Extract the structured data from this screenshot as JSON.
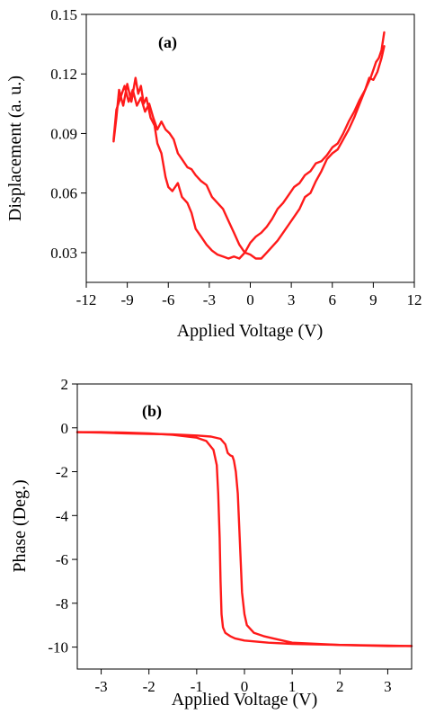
{
  "figure": {
    "colors": {
      "curve": "#ff1a1a",
      "axes": "#000000",
      "background": "#ffffff"
    }
  },
  "chart_data": [
    {
      "type": "line",
      "panel_label": "(a)",
      "xlabel": "Applied Voltage (V)",
      "ylabel": "Displacement (a. u.)",
      "xlim": [
        -12,
        12
      ],
      "ylim": [
        0.015,
        0.15
      ],
      "xticks": [
        -12,
        -9,
        -6,
        -3,
        0,
        3,
        6,
        9,
        12
      ],
      "yticks": [
        0.03,
        0.06,
        0.09,
        0.12,
        0.15
      ],
      "tick_labels_x": [
        "-12",
        "-9",
        "-6",
        "-3",
        "0",
        "3",
        "6",
        "9",
        "12"
      ],
      "tick_labels_y": [
        "0.03",
        "0.06",
        "0.09",
        "0.12",
        "0.15"
      ],
      "grid": false,
      "series": [
        {
          "x": [
            -10.0,
            -9.8,
            -9.6,
            -9.3,
            -9.0,
            -8.7,
            -8.4,
            -8.2,
            -8.0,
            -7.8,
            -7.6,
            -7.3,
            -7.0,
            -6.8,
            -6.5,
            -6.2,
            -6.0,
            -5.7,
            -5.3,
            -5.0,
            -4.6,
            -4.3,
            -4.0,
            -3.6,
            -3.2,
            -2.8,
            -2.4,
            -2.0,
            -1.6,
            -1.2,
            -0.8,
            -0.4,
            0.0,
            0.4,
            0.8,
            1.2,
            1.6,
            2.0,
            2.4,
            2.8,
            3.2,
            3.6,
            4.0,
            4.4,
            4.8,
            5.2,
            5.6,
            6.0,
            6.4,
            6.8,
            7.2,
            7.6,
            8.0,
            8.4,
            8.8,
            9.0,
            9.2,
            9.4,
            9.6,
            9.8
          ],
          "y": [
            0.086,
            0.098,
            0.112,
            0.104,
            0.115,
            0.106,
            0.118,
            0.11,
            0.114,
            0.105,
            0.108,
            0.098,
            0.094,
            0.085,
            0.08,
            0.068,
            0.063,
            0.061,
            0.065,
            0.058,
            0.055,
            0.05,
            0.042,
            0.038,
            0.034,
            0.031,
            0.029,
            0.028,
            0.027,
            0.028,
            0.027,
            0.03,
            0.035,
            0.038,
            0.04,
            0.043,
            0.047,
            0.052,
            0.055,
            0.059,
            0.063,
            0.065,
            0.069,
            0.071,
            0.075,
            0.076,
            0.079,
            0.083,
            0.085,
            0.09,
            0.096,
            0.101,
            0.107,
            0.112,
            0.118,
            0.122,
            0.126,
            0.128,
            0.132,
            0.141
          ]
        },
        {
          "x": [
            9.8,
            9.6,
            9.3,
            9.0,
            8.7,
            8.4,
            8.0,
            7.6,
            7.2,
            6.8,
            6.4,
            6.0,
            5.6,
            5.2,
            4.8,
            4.4,
            4.0,
            3.6,
            3.2,
            2.8,
            2.4,
            2.0,
            1.6,
            1.2,
            0.8,
            0.4,
            0.0,
            -0.4,
            -0.8,
            -1.2,
            -1.6,
            -2.0,
            -2.4,
            -2.8,
            -3.2,
            -3.6,
            -4.0,
            -4.3,
            -4.6,
            -5.0,
            -5.3,
            -5.6,
            -5.9,
            -6.2,
            -6.5,
            -6.8,
            -7.1,
            -7.4,
            -7.7,
            -8.0,
            -8.3,
            -8.6,
            -8.9,
            -9.2,
            -9.5,
            -9.8,
            -10.0
          ],
          "y": [
            0.134,
            0.128,
            0.121,
            0.117,
            0.118,
            0.112,
            0.105,
            0.098,
            0.092,
            0.087,
            0.082,
            0.08,
            0.077,
            0.071,
            0.066,
            0.06,
            0.058,
            0.052,
            0.048,
            0.044,
            0.04,
            0.036,
            0.033,
            0.03,
            0.027,
            0.027,
            0.029,
            0.03,
            0.034,
            0.04,
            0.046,
            0.052,
            0.055,
            0.058,
            0.064,
            0.066,
            0.069,
            0.072,
            0.073,
            0.077,
            0.08,
            0.087,
            0.09,
            0.092,
            0.096,
            0.092,
            0.098,
            0.105,
            0.101,
            0.108,
            0.104,
            0.112,
            0.106,
            0.114,
            0.108,
            0.102,
            0.087
          ]
        }
      ]
    },
    {
      "type": "line",
      "panel_label": "(b)",
      "xlabel": "Applied Voltage (V)",
      "ylabel": "Phase (Deg.)",
      "xlim": [
        -3.5,
        3.5
      ],
      "ylim": [
        -11,
        2
      ],
      "xticks": [
        -3,
        -2,
        -1,
        0,
        1,
        2,
        3
      ],
      "yticks": [
        -10,
        -8,
        -6,
        -4,
        -2,
        0,
        2
      ],
      "tick_labels_x": [
        "-3",
        "-2",
        "-1",
        "0",
        "1",
        "2",
        "3"
      ],
      "tick_labels_y": [
        "-10",
        "-8",
        "-6",
        "-4",
        "-2",
        "0",
        "2"
      ],
      "grid": false,
      "series": [
        {
          "x": [
            -3.5,
            -3.0,
            -2.5,
            -2.0,
            -1.5,
            -1.0,
            -0.8,
            -0.65,
            -0.58,
            -0.55,
            -0.52,
            -0.5,
            -0.48,
            -0.45,
            -0.4,
            -0.3,
            -0.2,
            0.0,
            0.5,
            1.0,
            2.0,
            3.0,
            3.5
          ],
          "y": [
            -0.2,
            -0.2,
            -0.22,
            -0.25,
            -0.32,
            -0.45,
            -0.6,
            -1.0,
            -1.7,
            -3.0,
            -5.0,
            -7.0,
            -8.5,
            -9.1,
            -9.35,
            -9.5,
            -9.6,
            -9.7,
            -9.8,
            -9.85,
            -9.9,
            -9.95,
            -9.95
          ]
        },
        {
          "x": [
            3.5,
            3.0,
            2.0,
            1.0,
            0.6,
            0.4,
            0.2,
            0.05,
            0.0,
            -0.05,
            -0.1,
            -0.14,
            -0.18,
            -0.22,
            -0.25,
            -0.3,
            -0.35,
            -0.4,
            -0.5,
            -0.7,
            -1.0,
            -1.5,
            -2.0,
            -2.5,
            -3.0,
            -3.5
          ],
          "y": [
            -9.95,
            -9.93,
            -9.9,
            -9.8,
            -9.6,
            -9.5,
            -9.35,
            -9.0,
            -8.5,
            -7.5,
            -5.0,
            -3.0,
            -2.0,
            -1.5,
            -1.3,
            -1.25,
            -1.15,
            -0.75,
            -0.5,
            -0.4,
            -0.35,
            -0.3,
            -0.28,
            -0.25,
            -0.22,
            -0.2
          ]
        }
      ]
    }
  ]
}
